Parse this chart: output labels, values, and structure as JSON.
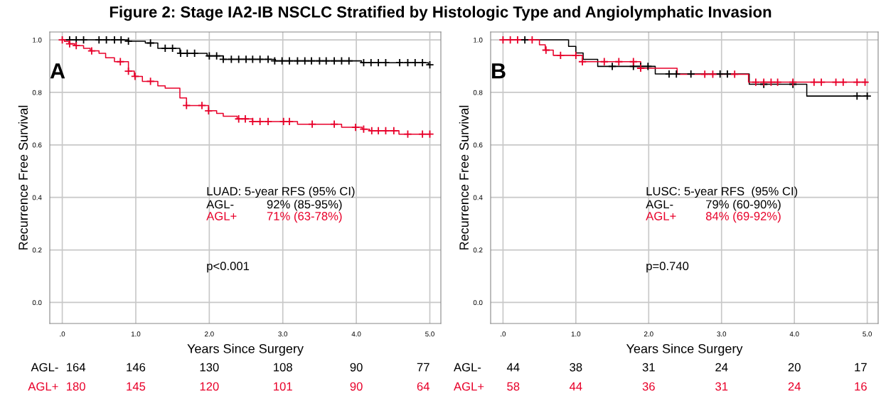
{
  "chart_data": [
    {
      "type": "step",
      "title": "Figure 2: Stage IA2-IB NSCLC Stratified by Histologic Type and Angiolymphatic Invasion",
      "xlabel": "Years Since Surgery",
      "ylabel": "Recurrence Free Survival",
      "xlim": [
        -0.17,
        5.15
      ],
      "ylim": [
        -0.08,
        1.03
      ],
      "xticks": [
        {
          "value": 0,
          "label": ".0"
        },
        {
          "value": 1,
          "label": "1.0"
        },
        {
          "value": 2,
          "label": "2.0"
        },
        {
          "value": 3,
          "label": "3.0"
        },
        {
          "value": 4,
          "label": "4.0"
        },
        {
          "value": 5,
          "label": "5.0"
        }
      ],
      "yticks": [
        {
          "value": 0,
          "label": "0.0"
        },
        {
          "value": 0.2,
          "label": "0.2"
        },
        {
          "value": 0.4,
          "label": "0.4"
        },
        {
          "value": 0.6,
          "label": "0.6"
        },
        {
          "value": 0.8,
          "label": "0.8"
        },
        {
          "value": 1,
          "label": "1.0"
        }
      ],
      "grid": true,
      "series": [
        {
          "color": "#000000",
          "x": [
            0,
            0.9,
            1.13,
            1.3,
            1.6,
            1.97,
            2.19,
            2.9,
            4.07,
            4.98,
            5.0
          ],
          "values": [
            1.0,
            0.995,
            0.988,
            0.968,
            0.949,
            0.939,
            0.926,
            0.92,
            0.913,
            0.905,
            0.905
          ]
        },
        {
          "color": "#e8002a",
          "x": [
            0,
            0.03,
            0.09,
            0.17,
            0.29,
            0.38,
            0.5,
            0.59,
            0.71,
            0.9,
            0.98,
            1.09,
            1.3,
            1.4,
            1.6,
            1.69,
            1.99,
            2.1,
            2.19,
            2.38,
            2.59,
            3.2,
            3.8,
            4.08,
            4.18,
            4.58,
            5.0
          ],
          "values": [
            1.0,
            0.994,
            0.985,
            0.978,
            0.968,
            0.958,
            0.949,
            0.932,
            0.917,
            0.881,
            0.861,
            0.842,
            0.825,
            0.816,
            0.779,
            0.75,
            0.73,
            0.72,
            0.709,
            0.699,
            0.689,
            0.679,
            0.667,
            0.66,
            0.654,
            0.641,
            0.641
          ]
        },
        {
          "type": "scatter",
          "marker": "cross",
          "color": "#000000",
          "x": [
            0.1,
            0.19,
            0.29,
            0.5,
            0.6,
            0.71,
            0.8,
            0.9,
            1.2,
            1.4,
            1.5,
            1.61,
            1.7,
            1.8,
            2.0,
            2.1,
            2.19,
            2.3,
            2.4,
            2.5,
            2.59,
            2.69,
            2.8,
            2.89,
            2.99,
            3.09,
            3.2,
            3.3,
            3.39,
            3.5,
            3.59,
            3.7,
            3.8,
            3.9,
            4.1,
            4.2,
            4.3,
            4.4,
            4.59,
            4.7,
            4.8,
            4.9,
            5.0
          ],
          "values": [
            1.0,
            1.0,
            1.0,
            1.0,
            1.0,
            1.0,
            1.0,
            0.995,
            0.988,
            0.968,
            0.968,
            0.949,
            0.949,
            0.949,
            0.939,
            0.939,
            0.926,
            0.926,
            0.926,
            0.926,
            0.926,
            0.926,
            0.926,
            0.92,
            0.92,
            0.92,
            0.92,
            0.92,
            0.92,
            0.92,
            0.92,
            0.92,
            0.92,
            0.92,
            0.913,
            0.913,
            0.913,
            0.913,
            0.913,
            0.913,
            0.913,
            0.913,
            0.905
          ]
        },
        {
          "type": "scatter",
          "marker": "cross",
          "color": "#e8002a",
          "x": [
            0,
            0.1,
            0.19,
            0.4,
            0.79,
            0.9,
            0.99,
            1.2,
            1.69,
            1.9,
            1.99,
            2.4,
            2.49,
            2.59,
            2.69,
            2.8,
            3.01,
            3.09,
            3.4,
            3.7,
            3.99,
            4.1,
            4.21,
            4.3,
            4.4,
            4.51,
            4.7,
            4.9,
            5.0
          ],
          "values": [
            1.0,
            0.985,
            0.978,
            0.958,
            0.917,
            0.881,
            0.861,
            0.842,
            0.75,
            0.75,
            0.73,
            0.699,
            0.699,
            0.689,
            0.689,
            0.689,
            0.689,
            0.689,
            0.679,
            0.679,
            0.667,
            0.66,
            0.654,
            0.654,
            0.654,
            0.654,
            0.641,
            0.641,
            0.641
          ]
        }
      ],
      "annotations": [
        "A",
        "LUAD: 5-year RFS (95% CI)",
        "AGL-",
        "92% (85-95%)",
        "AGL+",
        "71% (63-78%)",
        "p<0.001",
        "AGL-",
        "164",
        "146",
        "130",
        "108",
        "90",
        "77",
        "AGL+",
        "180",
        "145",
        "120",
        "101",
        "90",
        "64"
      ]
    },
    {
      "type": "step",
      "xlabel": "Years Since Surgery",
      "ylabel": "Recurrence Free Survival",
      "xlim": [
        -0.17,
        5.15
      ],
      "ylim": [
        -0.08,
        1.03
      ],
      "xticks": [
        {
          "value": 0,
          "label": ".0"
        },
        {
          "value": 1,
          "label": "1.0"
        },
        {
          "value": 2,
          "label": "2.0"
        },
        {
          "value": 3,
          "label": "3.0"
        },
        {
          "value": 4,
          "label": "4.0"
        },
        {
          "value": 5,
          "label": "5.0"
        }
      ],
      "yticks": [
        {
          "value": 0,
          "label": "0.0"
        },
        {
          "value": 0.2,
          "label": "0.2"
        },
        {
          "value": 0.4,
          "label": "0.4"
        },
        {
          "value": 0.6,
          "label": "0.6"
        },
        {
          "value": 0.8,
          "label": "0.8"
        },
        {
          "value": 1,
          "label": "1.0"
        }
      ],
      "grid": true,
      "series": [
        {
          "color": "#000000",
          "x": [
            0,
            0.9,
            1.0,
            1.1,
            1.3,
            2.09,
            3.38,
            4.17,
            5.0
          ],
          "values": [
            1.0,
            0.975,
            0.95,
            0.926,
            0.899,
            0.87,
            0.831,
            0.786,
            0.786
          ]
        },
        {
          "color": "#e8002a",
          "x": [
            0,
            0.5,
            0.58,
            0.69,
            1.09,
            1.89,
            2.39,
            3.37,
            5.0
          ],
          "values": [
            1.0,
            0.981,
            0.961,
            0.941,
            0.917,
            0.892,
            0.869,
            0.839,
            0.839
          ]
        },
        {
          "type": "scatter",
          "marker": "cross",
          "color": "#000000",
          "x": [
            0.3,
            1.5,
            1.79,
            1.89,
            1.99,
            2.28,
            2.38,
            2.58,
            2.98,
            3.08,
            3.58,
            3.98,
            4.86,
            5.0
          ],
          "values": [
            1.0,
            0.899,
            0.899,
            0.899,
            0.899,
            0.87,
            0.87,
            0.87,
            0.87,
            0.87,
            0.831,
            0.831,
            0.786,
            0.786
          ]
        },
        {
          "type": "scatter",
          "marker": "cross",
          "color": "#e8002a",
          "x": [
            0,
            0.1,
            0.2,
            0.4,
            0.59,
            0.79,
            1.0,
            1.09,
            1.39,
            1.59,
            1.79,
            1.89,
            2.77,
            2.88,
            3.18,
            3.47,
            3.58,
            3.68,
            3.77,
            3.98,
            4.27,
            4.37,
            4.57,
            4.67,
            4.86,
            4.97
          ],
          "values": [
            1.0,
            1.0,
            1.0,
            1.0,
            0.961,
            0.941,
            0.941,
            0.917,
            0.917,
            0.917,
            0.917,
            0.892,
            0.869,
            0.869,
            0.869,
            0.839,
            0.839,
            0.839,
            0.839,
            0.839,
            0.839,
            0.839,
            0.839,
            0.839,
            0.839,
            0.839
          ]
        }
      ],
      "annotations": [
        "B",
        "LUSC: 5-year RFS  (95% CI)",
        "AGL-",
        "79% (60-90%)",
        "AGL+",
        "84% (69-92%)",
        "p=0.740",
        "AGL-",
        "44",
        "38",
        "31",
        "24",
        "20",
        "17",
        "AGL+",
        "58",
        "44",
        "36",
        "31",
        "24",
        "16"
      ]
    }
  ]
}
